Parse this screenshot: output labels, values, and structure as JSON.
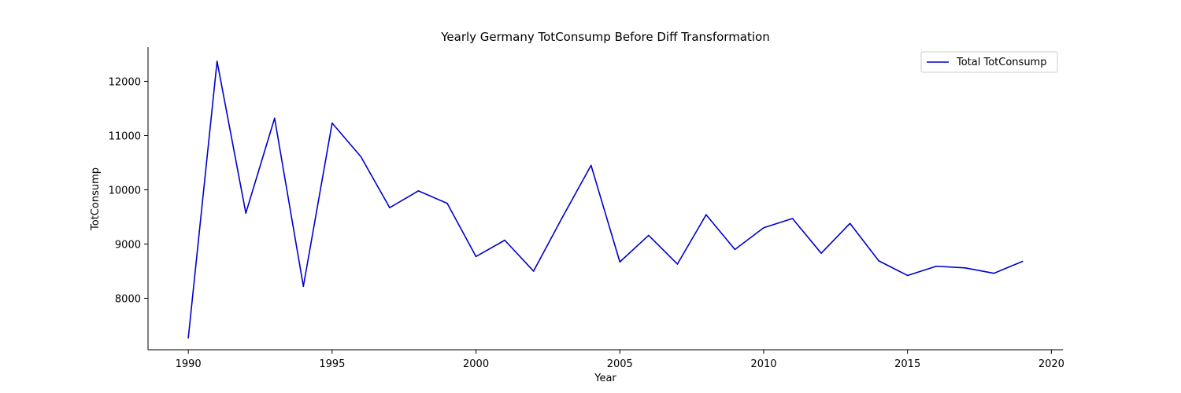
{
  "chart_data": {
    "type": "line",
    "title": "Yearly Germany TotConsump Before Diff Transformation",
    "xlabel": "Year",
    "ylabel": "TotConsump",
    "xlim": [
      1988.6,
      2020.4
    ],
    "ylim": [
      7050,
      12630
    ],
    "x_ticks": [
      1990,
      1995,
      2000,
      2005,
      2010,
      2015,
      2020
    ],
    "y_ticks": [
      8000,
      9000,
      10000,
      11000,
      12000
    ],
    "grid": false,
    "legend_position": "top-right",
    "series": [
      {
        "name": "Total TotConsump",
        "color": "#0000cd",
        "x": [
          1990,
          1991,
          1992,
          1993,
          1994,
          1995,
          1996,
          1997,
          1998,
          1999,
          2000,
          2001,
          2002,
          2003,
          2004,
          2005,
          2006,
          2007,
          2008,
          2009,
          2010,
          2011,
          2012,
          2013,
          2014,
          2015,
          2016,
          2017,
          2018,
          2019
        ],
        "y": [
          7270,
          12370,
          9570,
          11320,
          8220,
          11230,
          10610,
          9670,
          9980,
          9750,
          8770,
          9070,
          8500,
          9490,
          10450,
          8670,
          9160,
          8630,
          9540,
          8900,
          9300,
          9470,
          8830,
          9380,
          8690,
          8420,
          8590,
          8560,
          8460,
          8680
        ]
      }
    ]
  }
}
